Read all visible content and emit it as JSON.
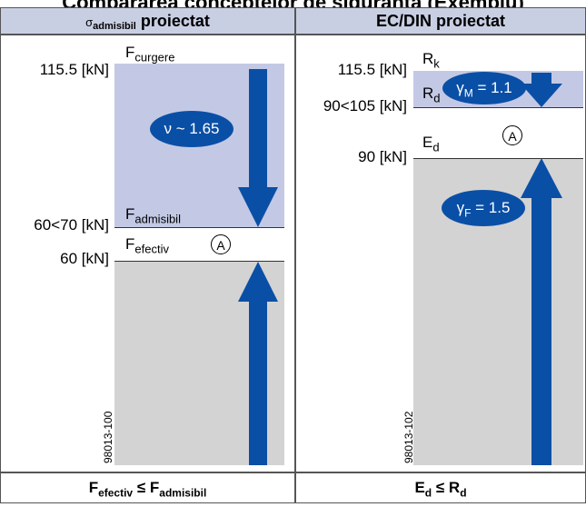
{
  "title": "Compararea conceptelor de siguranţă (Exemplu)",
  "left": {
    "header_sigma": "σ",
    "header_sub": "admisibil",
    "header_rest": " proiectat",
    "labels": {
      "v115": "115.5 [kN]",
      "v6070": "60<70 [kN]",
      "v60": "60 [kN]"
    },
    "f_curgere": {
      "main": "F",
      "sub": "curgere"
    },
    "f_admisibil": {
      "main": "F",
      "sub": "admisibil"
    },
    "f_efectiv": {
      "main": "F",
      "sub": "efectiv"
    },
    "circle": "A",
    "oval": "ν ~ 1.65",
    "code": "98013-100",
    "footer_F1": "F",
    "footer_sub1": "efectiv",
    "footer_op": " ≤ ",
    "footer_F2": "F",
    "footer_sub2": "admisibil"
  },
  "right": {
    "header": "EC/DIN proiectat",
    "labels": {
      "v115": "115.5 [kN]",
      "v90105": "90<105 [kN]",
      "v90": "90 [kN]"
    },
    "rk": {
      "main": "R",
      "sub": "k"
    },
    "rd": {
      "main": "R",
      "sub": "d"
    },
    "ed": {
      "main": "E",
      "sub": "d"
    },
    "circle": "A",
    "oval_m": {
      "main": "γ",
      "sub": "M",
      "rest": " = 1.1"
    },
    "oval_f": {
      "main": "γ",
      "sub": "F",
      "rest": " = 1.5"
    },
    "code": "98013-102",
    "footer_E": "E",
    "footer_sub_d": "d",
    "footer_op": " ≤ ",
    "footer_R": "R",
    "footer_sub_rd": "d"
  },
  "colors": {
    "blue_arrow": "#0a4fa6",
    "lavender": "#c3c9e5",
    "grey": "#d3d3d3",
    "header_bg": "#c9cfe3"
  }
}
